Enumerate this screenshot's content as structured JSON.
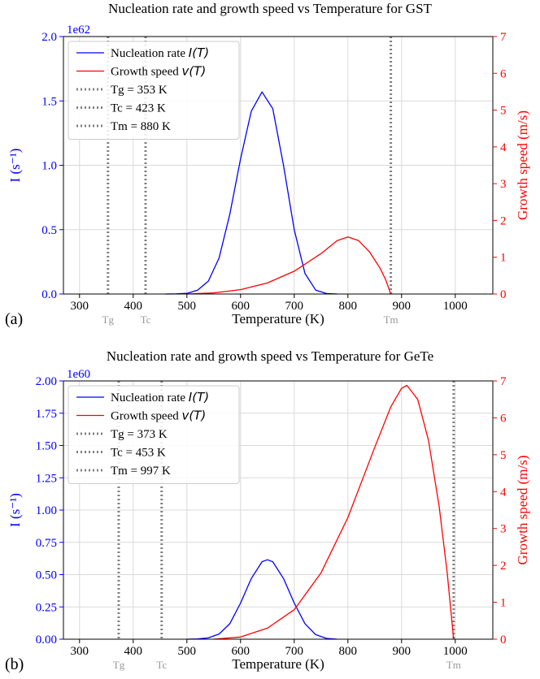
{
  "chart_data": [
    {
      "type": "line",
      "panel_label": "(a)",
      "title": "Nucleation rate and growth speed vs Temperature for GST",
      "xlabel": "Temperature (K)",
      "ylabel_left": "I (s⁻¹)",
      "ylabel_right": "Growth speed (m/s)",
      "left_offset_text": "1e62",
      "xlim": [
        270,
        1070
      ],
      "ylim_left": [
        0,
        2.0
      ],
      "ylim_right": [
        0,
        7
      ],
      "xticks": [
        300,
        400,
        500,
        600,
        700,
        800,
        900,
        1000
      ],
      "yticks_left": [
        0.0,
        0.5,
        1.0,
        1.5,
        2.0
      ],
      "yticks_left_labels": [
        "0.0",
        "0.5",
        "1.0",
        "1.5",
        "2.0"
      ],
      "yticks_right": [
        0,
        1,
        2,
        3,
        4,
        5,
        6,
        7
      ],
      "grid": true,
      "legend_position": "top-left",
      "colors": {
        "nucleation": "#0000ff",
        "growth": "#ff0000",
        "vline": "#808080",
        "left_axis": "#0000ff",
        "right_axis": "#ff0000"
      },
      "series": [
        {
          "name": "Nucleation rate I(T)",
          "legend_main": "Nucleation rate ",
          "legend_italic": "I(T)",
          "axis": "left",
          "x": [
            460,
            480,
            500,
            520,
            540,
            560,
            580,
            600,
            620,
            640,
            660,
            680,
            700,
            720,
            740,
            760,
            780
          ],
          "y": [
            0.0,
            0.001,
            0.005,
            0.03,
            0.1,
            0.28,
            0.62,
            1.05,
            1.42,
            1.57,
            1.44,
            1.0,
            0.5,
            0.16,
            0.03,
            0.004,
            0.0
          ]
        },
        {
          "name": "Growth speed v(T)",
          "legend_main": "Growth speed ",
          "legend_italic": "v(T)",
          "axis": "right",
          "x": [
            500,
            550,
            600,
            650,
            700,
            750,
            780,
            800,
            820,
            840,
            860,
            870,
            880
          ],
          "y": [
            0.0,
            0.03,
            0.12,
            0.3,
            0.62,
            1.1,
            1.45,
            1.55,
            1.45,
            1.15,
            0.7,
            0.4,
            0.0
          ]
        }
      ],
      "vlines": [
        {
          "label": "Tg = 353 K",
          "short": "Tg",
          "x": 353
        },
        {
          "label": "Tc = 423 K",
          "short": "Tc",
          "x": 423
        },
        {
          "label": "Tm = 880 K",
          "short": "Tm",
          "x": 880
        }
      ]
    },
    {
      "type": "line",
      "panel_label": "(b)",
      "title": "Nucleation rate and growth speed vs Temperature for GeTe",
      "xlabel": "Temperature (K)",
      "ylabel_left": "I (s⁻¹)",
      "ylabel_right": "Growth speed (m/s)",
      "left_offset_text": "1e60",
      "xlim": [
        270,
        1070
      ],
      "ylim_left": [
        0,
        2.0
      ],
      "ylim_right": [
        0,
        7
      ],
      "xticks": [
        300,
        400,
        500,
        600,
        700,
        800,
        900,
        1000
      ],
      "yticks_left": [
        0.0,
        0.25,
        0.5,
        0.75,
        1.0,
        1.25,
        1.5,
        1.75,
        2.0
      ],
      "yticks_left_labels": [
        "0.00",
        "0.25",
        "0.50",
        "0.75",
        "1.00",
        "1.25",
        "1.50",
        "1.75",
        "2.00"
      ],
      "yticks_right": [
        0,
        1,
        2,
        3,
        4,
        5,
        6,
        7
      ],
      "grid": true,
      "legend_position": "top-left",
      "colors": {
        "nucleation": "#0000ff",
        "growth": "#ff0000",
        "vline": "#808080",
        "left_axis": "#0000ff",
        "right_axis": "#ff0000"
      },
      "series": [
        {
          "name": "Nucleation rate I(T)",
          "legend_main": "Nucleation rate ",
          "legend_italic": "I(T)",
          "axis": "left",
          "x": [
            500,
            520,
            540,
            560,
            580,
            600,
            620,
            640,
            650,
            660,
            680,
            700,
            720,
            740,
            760,
            780
          ],
          "y": [
            0.0,
            0.002,
            0.01,
            0.04,
            0.12,
            0.28,
            0.47,
            0.6,
            0.615,
            0.6,
            0.47,
            0.28,
            0.12,
            0.035,
            0.006,
            0.0
          ]
        },
        {
          "name": "Growth speed v(T)",
          "legend_main": "Growth speed ",
          "legend_italic": "v(T)",
          "axis": "right",
          "x": [
            550,
            600,
            650,
            700,
            750,
            800,
            850,
            880,
            900,
            910,
            930,
            950,
            970,
            985,
            997
          ],
          "y": [
            0.0,
            0.06,
            0.3,
            0.8,
            1.8,
            3.3,
            5.2,
            6.3,
            6.8,
            6.88,
            6.5,
            5.4,
            3.6,
            1.8,
            0.0
          ]
        }
      ],
      "vlines": [
        {
          "label": "Tg = 373 K",
          "short": "Tg",
          "x": 373
        },
        {
          "label": "Tc = 453 K",
          "short": "Tc",
          "x": 453
        },
        {
          "label": "Tm = 997 K",
          "short": "Tm",
          "x": 997
        }
      ]
    }
  ]
}
